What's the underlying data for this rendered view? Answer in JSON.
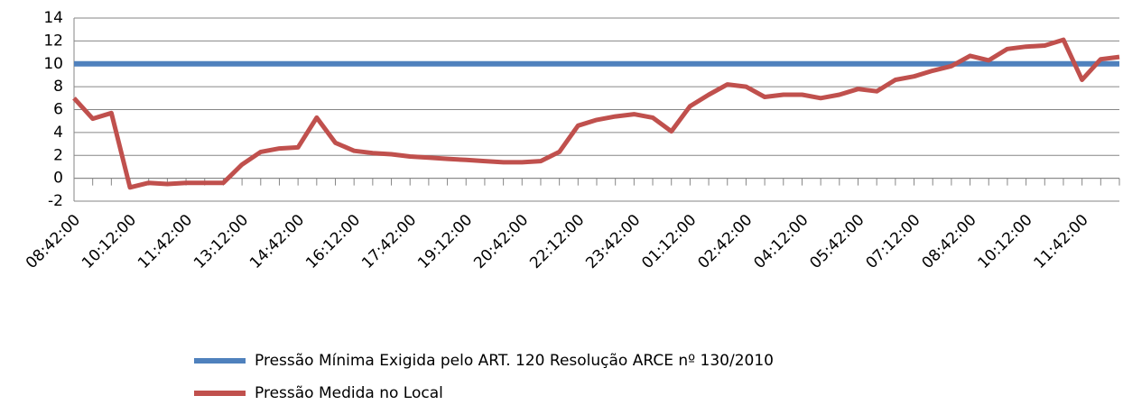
{
  "chart_data": {
    "type": "line",
    "categories": [
      "08:42:00",
      null,
      null,
      "10:12:00",
      null,
      null,
      "11:42:00",
      null,
      null,
      "13:12:00",
      null,
      null,
      "14:42:00",
      null,
      null,
      "16:12:00",
      null,
      null,
      "17:42:00",
      null,
      null,
      "19:12:00",
      null,
      null,
      "20:42:00",
      null,
      null,
      "22:12:00",
      null,
      null,
      "23:42:00",
      null,
      null,
      "01:12:00",
      null,
      null,
      "02:42:00",
      null,
      null,
      "04:12:00",
      null,
      null,
      "05:42:00",
      null,
      null,
      "07:12:00",
      null,
      null,
      "08:42:00",
      null,
      null,
      "10:12:00",
      null,
      null,
      "11:42:00",
      null,
      null
    ],
    "series": [
      {
        "name": "Pressão Mínima Exigida pelo ART. 120 Resolução ARCE nº 130/2010",
        "color": "#4f81bd",
        "values": [
          10,
          10,
          10,
          10,
          10,
          10,
          10,
          10,
          10,
          10,
          10,
          10,
          10,
          10,
          10,
          10,
          10,
          10,
          10,
          10,
          10,
          10,
          10,
          10,
          10,
          10,
          10,
          10,
          10,
          10,
          10,
          10,
          10,
          10,
          10,
          10,
          10,
          10,
          10,
          10,
          10,
          10,
          10,
          10,
          10,
          10,
          10,
          10,
          10,
          10,
          10,
          10,
          10,
          10,
          10,
          10,
          10
        ]
      },
      {
        "name": "Pressão Medida no Local",
        "color": "#c0504d",
        "values": [
          7.0,
          5.2,
          5.7,
          -0.8,
          -0.4,
          -0.5,
          -0.4,
          -0.4,
          -0.4,
          1.2,
          2.3,
          2.6,
          2.7,
          5.3,
          3.1,
          2.4,
          2.2,
          2.1,
          1.9,
          1.8,
          1.7,
          1.6,
          1.5,
          1.4,
          1.4,
          1.5,
          2.3,
          4.6,
          5.1,
          5.4,
          5.6,
          5.3,
          4.1,
          6.3,
          7.3,
          8.2,
          8.0,
          7.1,
          7.3,
          7.3,
          7.0,
          7.3,
          7.8,
          7.6,
          8.6,
          8.9,
          9.4,
          9.8,
          10.7,
          10.3,
          11.3,
          11.5,
          11.6,
          12.1,
          8.6,
          10.4,
          10.6
        ]
      }
    ],
    "ylim": [
      -2,
      14
    ],
    "yticks": [
      -2,
      0,
      2,
      4,
      6,
      8,
      10,
      12,
      14
    ],
    "grid": true,
    "legend": "bottom"
  }
}
